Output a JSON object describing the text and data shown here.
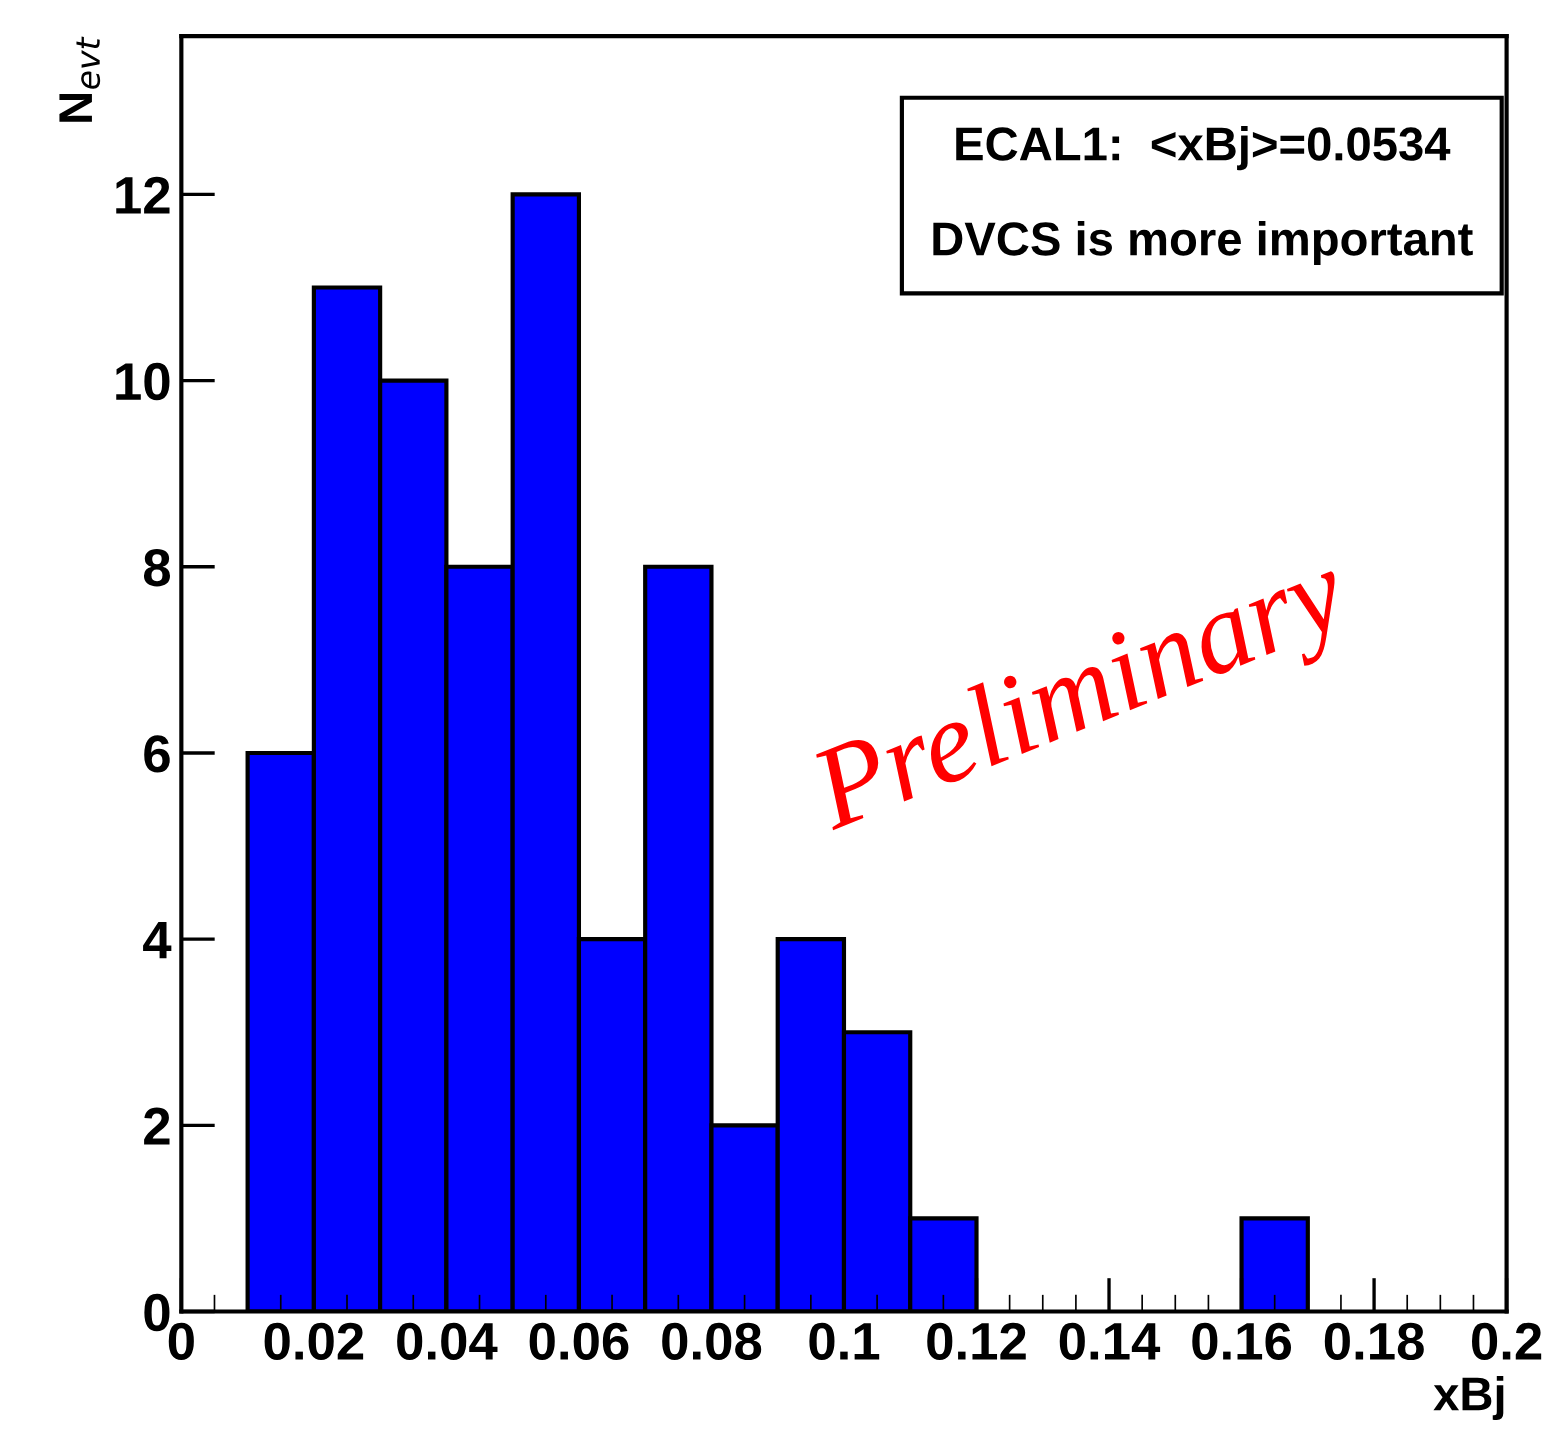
{
  "chart_data": {
    "type": "histogram",
    "xlabel": "xBj",
    "ylabel": "N$_{evt}$",
    "bins": [
      0.01,
      0.02,
      0.03,
      0.04,
      0.05,
      0.06,
      0.07,
      0.08,
      0.09,
      0.1,
      0.11,
      0.12,
      0.13,
      0.14,
      0.15,
      0.16,
      0.17
    ],
    "values": [
      6,
      11,
      10,
      8,
      12,
      4,
      8,
      2,
      4,
      3,
      1,
      0,
      0,
      0,
      0,
      1
    ],
    "color": "#0000ff",
    "xlim": [
      0,
      0.2
    ],
    "xticks": [
      0,
      0.02,
      0.04,
      0.06,
      0.08,
      0.1,
      0.12,
      0.14,
      0.16,
      0.18,
      0.2
    ],
    "ylim": [
      0,
      13.7
    ],
    "yticks": [
      0,
      2,
      4,
      6,
      8,
      10,
      12
    ],
    "grid": false,
    "legend": false,
    "annotations": [
      "ECAL1:  <xBj>=0.0534",
      "DVCS is more important",
      "Preliminary"
    ]
  }
}
